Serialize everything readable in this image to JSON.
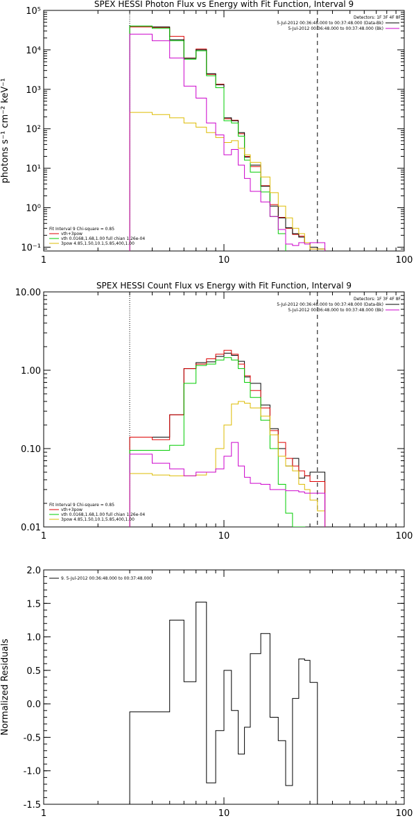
{
  "chart_data": [
    {
      "type": "line",
      "title": "SPEX HESSI Photon Flux vs Energy with Fit Function, Interval 9",
      "xlabel": "",
      "ylabel": "photons s⁻¹ cm⁻² keV⁻¹",
      "xscale": "log",
      "yscale": "log",
      "xlim": [
        1,
        100
      ],
      "ylim": [
        0.08,
        100000
      ],
      "xtick_labels": [
        "1",
        "10",
        "100"
      ],
      "ytick_labels": [
        "10⁻¹",
        "10⁰",
        "10¹",
        "10²",
        "10³",
        "10⁴",
        "10⁵"
      ],
      "ytick_values": [
        0.1,
        1,
        10,
        100,
        1000,
        10000,
        100000
      ],
      "vlines": [
        {
          "x": 3.0,
          "style": "dotted"
        },
        {
          "x": 33.0,
          "style": "dashed"
        }
      ],
      "detectors": "Detectors: 1F 3F 4F 8F",
      "legend_top_right": [
        {
          "text": "5-Jul-2012 00:36:48.000 to 00:37:48.000 (Data-Bk)",
          "color": "#000000"
        },
        {
          "text": "5-Jul-2012 00:36:48.000 to 00:37:48.000 (Bk)",
          "color": "#cc00cc"
        }
      ],
      "legend_bottom_left": [
        {
          "text": "Fit Interval 9   Chi-square = 0.85",
          "color": "#000000"
        },
        {
          "text": "vth+3pow",
          "color": "#dd0000"
        },
        {
          "text": "vth 0.0168,1.68,1.00  full chian 1.26e-04",
          "color": "#00cc00"
        },
        {
          "text": "3pow 4.85,1.50,10.1,5.85,400,1.00",
          "color": "#ddbb00"
        }
      ],
      "series": [
        {
          "name": "vth+3pow",
          "color": "#dd0000",
          "x": [
            3,
            4,
            5,
            6,
            7,
            8,
            9,
            10,
            11,
            12,
            13,
            14,
            16,
            18,
            20,
            22,
            24,
            26,
            28,
            30,
            33
          ],
          "values": [
            38000,
            37000,
            22000,
            6200,
            10500,
            2400,
            1350,
            180,
            165,
            75,
            20,
            11,
            3.6,
            1.2,
            0.57,
            0.3,
            0.21,
            0.19,
            0.13,
            0.09,
            0.09
          ]
        },
        {
          "name": "",
          "color": "#000000",
          "x": [
            3,
            4,
            5,
            6,
            7,
            8,
            9,
            10,
            11,
            12,
            13,
            14,
            16,
            18,
            20,
            22,
            24,
            26,
            28,
            30,
            33
          ],
          "values": [
            40000,
            38000,
            18000,
            6100,
            10000,
            2500,
            1300,
            190,
            160,
            80,
            19,
            12,
            3.5,
            1.1,
            0.55,
            0.31,
            0.22,
            0.18,
            0.13,
            0.1,
            0.09
          ]
        },
        {
          "name": "vth",
          "color": "#00cc00",
          "x": [
            3,
            4,
            5,
            6,
            7,
            8,
            9,
            10,
            11,
            12,
            13,
            14,
            16,
            18,
            20,
            22
          ],
          "values": [
            40000,
            35000,
            17000,
            5800,
            9500,
            2200,
            1100,
            160,
            140,
            65,
            16,
            8,
            2.5,
            0.6,
            0.22,
            0.07
          ]
        },
        {
          "name": "3pow",
          "color": "#ddbb00",
          "x": [
            3,
            4,
            5,
            6,
            7,
            8,
            9,
            10,
            11,
            12,
            13,
            14,
            16,
            18,
            20,
            22,
            24,
            26,
            28,
            30,
            33
          ],
          "values": [
            260,
            230,
            190,
            140,
            110,
            80,
            60,
            45,
            50,
            32,
            22,
            14,
            6,
            2.4,
            1.1,
            0.55,
            0.3,
            0.22,
            0.13,
            0.09,
            0.09
          ]
        },
        {
          "name": "",
          "color": "#cc00cc",
          "x": [
            3,
            4,
            5,
            6,
            7,
            8,
            9,
            10,
            11,
            12,
            13,
            14,
            16,
            18,
            20,
            22,
            24,
            26,
            28,
            30,
            33
          ],
          "values": [
            25000,
            17000,
            6200,
            1200,
            600,
            140,
            70,
            22,
            30,
            12,
            5.5,
            2.6,
            1.4,
            0.6,
            0.28,
            0.12,
            0.11,
            0.13,
            0.12,
            0.13,
            0.13
          ]
        }
      ]
    },
    {
      "type": "line",
      "title": "SPEX HESSI Count Flux vs Energy with Fit Function, Interval 9",
      "xlabel": "",
      "ylabel": "",
      "xscale": "log",
      "yscale": "log",
      "xlim": [
        1,
        100
      ],
      "ylim": [
        0.01,
        10
      ],
      "xtick_labels": [
        "1",
        "10",
        "100"
      ],
      "ytick_labels": [
        "0.01",
        "0.10",
        "1.00",
        "10.00"
      ],
      "ytick_values": [
        0.01,
        0.1,
        1,
        10
      ],
      "vlines": [
        {
          "x": 3.0,
          "style": "dotted"
        },
        {
          "x": 33.0,
          "style": "dashed"
        }
      ],
      "detectors": "Detectors: 1F 3F 4F 8F",
      "legend_top_right": [
        {
          "text": "5-Jul-2012 00:36:48.000 to 00:37:48.000 (Data-Bk)",
          "color": "#000000"
        },
        {
          "text": "5-Jul-2012 00:36:48.000 to 00:37:48.000 (Bk)",
          "color": "#cc00cc"
        }
      ],
      "legend_bottom_left": [
        {
          "text": "Fit Interval 9   Chi-square = 0.85",
          "color": "#000000"
        },
        {
          "text": "vth+3pow",
          "color": "#dd0000"
        },
        {
          "text": "vth 0.0168,1.68,1.00  full chian 1.26e-04",
          "color": "#00cc00"
        },
        {
          "text": "3pow 4.85,1.50,10.1,5.85,400,1.00",
          "color": "#ddbb00"
        }
      ],
      "series": [
        {
          "name": "",
          "color": "#000000",
          "x": [
            3,
            4,
            5,
            6,
            7,
            8,
            9,
            10,
            11,
            12,
            13,
            14,
            16,
            18,
            20,
            22,
            24,
            26,
            28,
            30,
            33
          ],
          "values": [
            0.14,
            0.14,
            0.27,
            1.05,
            1.25,
            1.28,
            1.5,
            1.65,
            1.55,
            1.3,
            0.82,
            0.68,
            0.36,
            0.18,
            0.1,
            0.06,
            0.075,
            0.042,
            0.045,
            0.05,
            0.05
          ]
        },
        {
          "name": "vth+3pow",
          "color": "#dd0000",
          "x": [
            3,
            4,
            5,
            6,
            7,
            8,
            9,
            10,
            11,
            12,
            13,
            14,
            16,
            18,
            20,
            22,
            24,
            26,
            28,
            30,
            33
          ],
          "values": [
            0.14,
            0.13,
            0.27,
            1.05,
            1.2,
            1.4,
            1.6,
            1.8,
            1.6,
            1.2,
            0.85,
            0.55,
            0.33,
            0.17,
            0.12,
            0.075,
            0.06,
            0.052,
            0.045,
            0.038,
            0.038
          ]
        },
        {
          "name": "vth",
          "color": "#00cc00",
          "x": [
            3,
            4,
            5,
            6,
            7,
            8,
            9,
            10,
            11,
            12,
            13,
            14,
            16,
            18,
            20,
            22,
            24,
            26
          ],
          "values": [
            0.095,
            0.095,
            0.11,
            0.68,
            1.15,
            1.2,
            1.35,
            1.45,
            1.35,
            1.05,
            0.7,
            0.45,
            0.23,
            0.1,
            0.035,
            0.015,
            0.01,
            0.01
          ]
        },
        {
          "name": "3pow",
          "color": "#ddbb00",
          "x": [
            3,
            4,
            5,
            6,
            7,
            8,
            9,
            10,
            11,
            12,
            13,
            14,
            16,
            18,
            20,
            22,
            24,
            26,
            28,
            30,
            33
          ],
          "values": [
            0.048,
            0.046,
            0.045,
            0.045,
            0.046,
            0.05,
            0.1,
            0.2,
            0.37,
            0.4,
            0.38,
            0.33,
            0.26,
            0.15,
            0.08,
            0.06,
            0.052,
            0.035,
            0.03,
            0.022,
            0.016
          ]
        },
        {
          "name": "",
          "color": "#cc00cc",
          "x": [
            3,
            4,
            5,
            6,
            7,
            8,
            9,
            10,
            11,
            12,
            13,
            14,
            16,
            18,
            20,
            22,
            24,
            26,
            28,
            30,
            33
          ],
          "values": [
            0.085,
            0.065,
            0.055,
            0.045,
            0.05,
            0.05,
            0.055,
            0.08,
            0.12,
            0.06,
            0.043,
            0.036,
            0.035,
            0.03,
            0.03,
            0.029,
            0.029,
            0.028,
            0.027,
            0.027,
            0.027
          ]
        }
      ]
    },
    {
      "type": "line",
      "title": "",
      "xlabel": "",
      "ylabel": "Normalized Residuals",
      "xscale": "log",
      "yscale": "linear",
      "xlim": [
        1,
        100
      ],
      "ylim": [
        -1.5,
        2.0
      ],
      "xtick_labels": [
        "1",
        "10",
        "100"
      ],
      "ytick_labels": [
        "-1.5",
        "-1.0",
        "-0.5",
        "0.0",
        "0.5",
        "1.0",
        "1.5",
        "2.0"
      ],
      "ytick_values": [
        -1.5,
        -1.0,
        -0.5,
        0.0,
        0.5,
        1.0,
        1.5,
        2.0
      ],
      "legend_top_left": [
        {
          "text": "9.  5-Jul-2012 00:36:48.000 to 00:37:48.000",
          "color": "#000000"
        }
      ],
      "series": [
        {
          "name": "9.  5-Jul-2012 00:36:48.000 to 00:37:48.000",
          "color": "#000000",
          "x": [
            3,
            4,
            5,
            6,
            7,
            8,
            9,
            10,
            11,
            12,
            13,
            14,
            16,
            18,
            20,
            22,
            24,
            26,
            28,
            30,
            33
          ],
          "values": [
            -0.12,
            -0.12,
            1.25,
            0.33,
            1.52,
            -1.18,
            -0.4,
            0.5,
            -0.1,
            -0.75,
            -0.35,
            0.75,
            1.05,
            -0.2,
            -0.55,
            -1.22,
            0.08,
            0.67,
            0.65,
            0.32,
            -1.6
          ]
        }
      ]
    }
  ]
}
